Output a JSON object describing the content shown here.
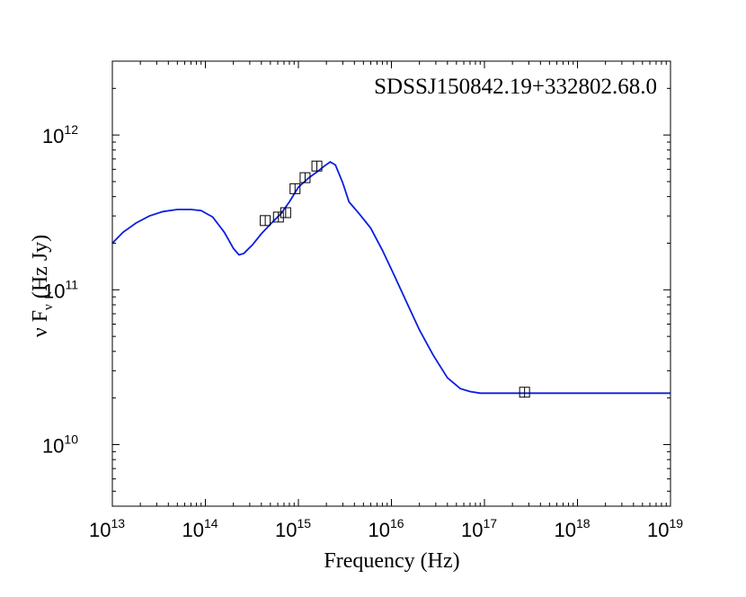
{
  "chart_data": {
    "type": "line",
    "title": "",
    "annotation": "SDSSJ150842.19+332802.68.0",
    "xlabel": "Frequency (Hz)",
    "ylabel": "ν F",
    "ylabel_subscript": "ν",
    "ylabel_units": "(Hz Jy)",
    "x_scale": "log",
    "y_scale": "log",
    "xlim": [
      10000000000000.0,
      1e+19
    ],
    "ylim": [
      4000000000.0,
      3000000000000.0
    ],
    "grid": false,
    "x_ticks": [
      {
        "base": "10",
        "exp": "13",
        "value": 10000000000000.0
      },
      {
        "base": "10",
        "exp": "14",
        "value": 100000000000000.0
      },
      {
        "base": "10",
        "exp": "15",
        "value": 1000000000000000.0
      },
      {
        "base": "10",
        "exp": "16",
        "value": 1e+16
      },
      {
        "base": "10",
        "exp": "17",
        "value": 1e+17
      },
      {
        "base": "10",
        "exp": "18",
        "value": 1e+18
      },
      {
        "base": "10",
        "exp": "19",
        "value": 1e+19
      }
    ],
    "y_ticks": [
      {
        "base": "10",
        "exp": "10",
        "value": 10000000000.0
      },
      {
        "base": "10",
        "exp": "11",
        "value": 100000000000.0
      },
      {
        "base": "10",
        "exp": "12",
        "value": 1000000000000.0
      }
    ],
    "series": [
      {
        "kind": "line",
        "color": "#0a1ee0",
        "x": [
          10000000000000.0,
          13000000000000.0,
          18000000000000.0,
          25000000000000.0,
          35000000000000.0,
          50000000000000.0,
          70000000000000.0,
          90000000000000.0,
          120000000000000.0,
          160000000000000.0,
          200000000000000.0,
          230000000000000.0,
          260000000000000.0,
          320000000000000.0,
          400000000000000.0,
          500000000000000.0,
          650000000000000.0,
          800000000000000.0,
          1000000000000000.0,
          1300000000000000.0,
          1600000000000000.0,
          1900000000000000.0,
          2200000000000000.0,
          2500000000000000.0,
          3000000000000000.0,
          3500000000000000.0,
          4500000000000000.0,
          6000000000000000.0,
          8000000000000000.0,
          1.1e+16,
          1.5e+16,
          2e+16,
          2.8e+16,
          4e+16,
          5.5e+16,
          7e+16,
          9e+16,
          1.2e+17,
          2e+17,
          5e+17,
          1e+18,
          1e+19
        ],
        "y": [
          200000000000.0,
          235000000000.0,
          270000000000.0,
          300000000000.0,
          320000000000.0,
          330000000000.0,
          330000000000.0,
          325000000000.0,
          295000000000.0,
          235000000000.0,
          185000000000.0,
          168000000000.0,
          172000000000.0,
          195000000000.0,
          230000000000.0,
          265000000000.0,
          310000000000.0,
          370000000000.0,
          460000000000.0,
          530000000000.0,
          580000000000.0,
          630000000000.0,
          670000000000.0,
          640000000000.0,
          490000000000.0,
          370000000000.0,
          310000000000.0,
          250000000000.0,
          180000000000.0,
          120000000000.0,
          80000000000.0,
          55000000000.0,
          38000000000.0,
          27000000000.0,
          23000000000.0,
          22000000000.0,
          21500000000.0,
          21500000000.0,
          21500000000.0,
          21500000000.0,
          21500000000.0,
          21500000000.0
        ]
      },
      {
        "kind": "markers",
        "marker": "square",
        "color": "#000000",
        "x": [
          440000000000000.0,
          610000000000000.0,
          730000000000000.0,
          920000000000000.0,
          1180000000000000.0,
          1580000000000000.0,
          2.7e+17
        ],
        "y": [
          280000000000.0,
          295000000000.0,
          315000000000.0,
          450000000000.0,
          530000000000.0,
          630000000000.0,
          21800000000.0
        ]
      }
    ]
  }
}
